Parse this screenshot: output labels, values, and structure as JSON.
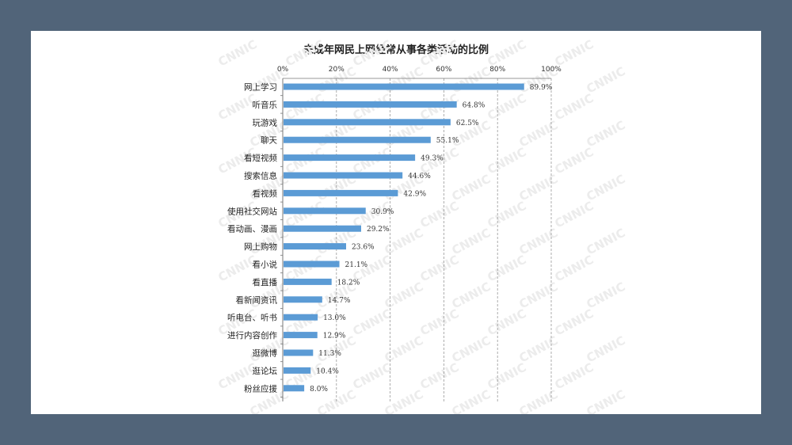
{
  "chart_data": {
    "type": "bar",
    "orientation": "horizontal",
    "title": "未成年网民上网经常从事各类活动的比例",
    "xlabel": "",
    "ylabel": "",
    "xlim": [
      0,
      100
    ],
    "x_ticks": [
      "0%",
      "20%",
      "40%",
      "60%",
      "80%",
      "100%"
    ],
    "categories": [
      "网上学习",
      "听音乐",
      "玩游戏",
      "聊天",
      "看短视频",
      "搜索信息",
      "看视频",
      "使用社交网站",
      "看动画、漫画",
      "网上购物",
      "看小说",
      "看直播",
      "看新闻资讯",
      "听电台、听书",
      "进行内容创作",
      "逛微博",
      "逛论坛",
      "粉丝应援"
    ],
    "values": [
      89.9,
      64.8,
      62.5,
      55.1,
      49.3,
      44.6,
      42.9,
      30.9,
      29.2,
      23.6,
      21.1,
      18.2,
      14.7,
      13.0,
      12.9,
      11.3,
      10.4,
      8.0
    ],
    "value_labels": [
      "89.9%",
      "64.8%",
      "62.5%",
      "55.1%",
      "49.3%",
      "44.6%",
      "42.9%",
      "30.9%",
      "29.2%",
      "23.6%",
      "21.1%",
      "18.2%",
      "14.7%",
      "13.0%",
      "12.9%",
      "11.3%",
      "10.4%",
      "8.0%"
    ],
    "grid": true,
    "legend": "none",
    "colors": {
      "bar": "#5b9bd5",
      "background": "#ffffff",
      "frame": "#516479"
    }
  },
  "watermark": "CNNIC"
}
